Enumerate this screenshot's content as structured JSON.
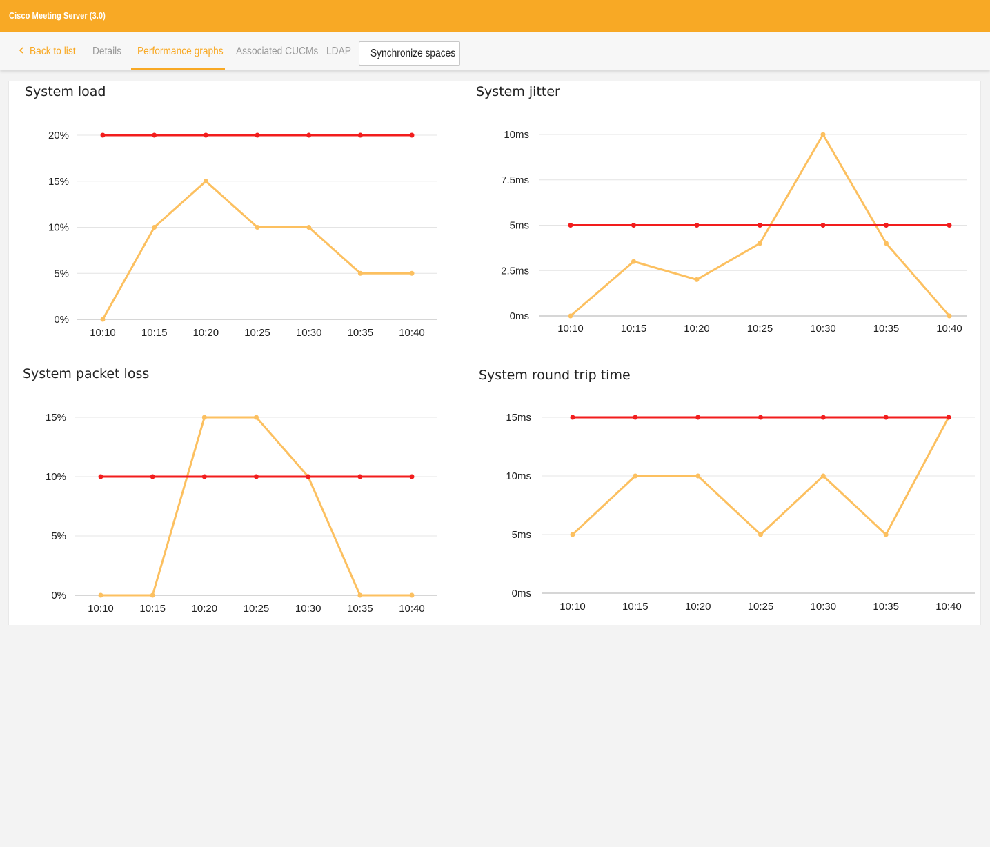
{
  "header": {
    "title": "Cisco Meeting Server (3.0)"
  },
  "tabs": {
    "back": "Back to list",
    "details": "Details",
    "performance": "Performance graphs",
    "cucms": "Associated CUCMs",
    "ldap": "LDAP",
    "sync": "Synchronize spaces"
  },
  "colors": {
    "accent": "#f8a925",
    "threshold": "#f21d1d",
    "series": "#fcc060"
  },
  "chart_data": [
    {
      "type": "line",
      "title": "System load",
      "x": [
        "10:10",
        "10:15",
        "10:20",
        "10:25",
        "10:30",
        "10:35",
        "10:40"
      ],
      "yticks": [
        "0%",
        "5%",
        "10%",
        "15%",
        "20%"
      ],
      "ylim": [
        0,
        20
      ],
      "series": [
        {
          "values": [
            20,
            20,
            20,
            20,
            20,
            20,
            20
          ],
          "color": "#f21d1d"
        },
        {
          "values": [
            0,
            10,
            15,
            10,
            10,
            5,
            5
          ],
          "color": "#fcc060"
        }
      ]
    },
    {
      "type": "line",
      "title": "System jitter",
      "x": [
        "10:10",
        "10:15",
        "10:20",
        "10:25",
        "10:30",
        "10:35",
        "10:40"
      ],
      "yticks": [
        "0ms",
        "2.5ms",
        "5ms",
        "7.5ms",
        "10ms"
      ],
      "ylim": [
        0,
        10
      ],
      "series": [
        {
          "values": [
            5,
            5,
            5,
            5,
            5,
            5,
            5
          ],
          "color": "#f21d1d"
        },
        {
          "values": [
            0,
            3,
            2,
            4,
            10,
            4,
            0
          ],
          "color": "#fcc060"
        }
      ]
    },
    {
      "type": "line",
      "title": "System packet loss",
      "x": [
        "10:10",
        "10:15",
        "10:20",
        "10:25",
        "10:30",
        "10:35",
        "10:40"
      ],
      "yticks": [
        "0%",
        "5%",
        "10%",
        "15%"
      ],
      "ylim": [
        0,
        15
      ],
      "series": [
        {
          "values": [
            10,
            10,
            10,
            10,
            10,
            10,
            10
          ],
          "color": "#f21d1d"
        },
        {
          "values": [
            0,
            0,
            15,
            15,
            10,
            0,
            0
          ],
          "color": "#fcc060"
        }
      ]
    },
    {
      "type": "line",
      "title": "System round trip time",
      "x": [
        "10:10",
        "10:15",
        "10:20",
        "10:25",
        "10:30",
        "10:35",
        "10:40"
      ],
      "yticks": [
        "0ms",
        "5ms",
        "10ms",
        "15ms"
      ],
      "ylim": [
        0,
        15
      ],
      "series": [
        {
          "values": [
            15,
            15,
            15,
            15,
            15,
            15,
            15
          ],
          "color": "#f21d1d"
        },
        {
          "values": [
            5,
            10,
            10,
            5,
            10,
            5,
            15
          ],
          "color": "#fcc060"
        }
      ]
    }
  ]
}
